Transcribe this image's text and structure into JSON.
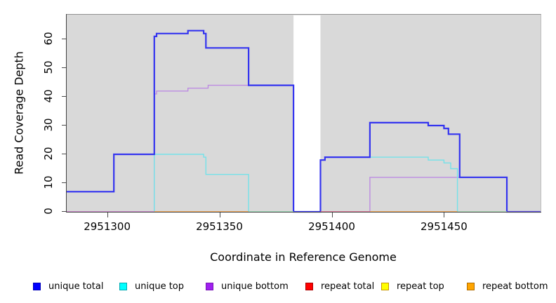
{
  "figure": {
    "xlabel": "Coordinate in Reference Genome",
    "ylabel": "Read Coverage Depth"
  },
  "chart_data": {
    "type": "line",
    "subtype": "step-coverage-plot",
    "title": "",
    "xlabel": "Coordinate in Reference Genome",
    "ylabel": "Read Coverage Depth",
    "xlim": [
      2951282,
      2951493
    ],
    "ylim": [
      0,
      68.5
    ],
    "x_ticks": [
      2951300,
      2951350,
      2951400,
      2951450
    ],
    "y_ticks": [
      0,
      10,
      20,
      30,
      40,
      50,
      60
    ],
    "grid": false,
    "legend_position": "bottom",
    "panel_bg": "#d9d9d9",
    "gap_region": {
      "x_start": 2951383,
      "x_end": 2951395,
      "color": "#ffffff",
      "note": "white band where no reference coverage is drawn"
    },
    "series": [
      {
        "name": "unique total",
        "color": "#3434ef",
        "line_width": 2.2,
        "steps": [
          [
            2951282,
            7
          ],
          [
            2951303,
            20
          ],
          [
            2951321,
            61
          ],
          [
            2951322,
            62
          ],
          [
            2951336,
            63
          ],
          [
            2951343,
            62
          ],
          [
            2951344,
            57
          ],
          [
            2951363,
            44
          ],
          [
            2951383,
            0
          ],
          [
            2951395,
            18
          ],
          [
            2951397,
            19
          ],
          [
            2951417,
            31
          ],
          [
            2951443,
            30
          ],
          [
            2951450,
            29
          ],
          [
            2951452,
            27
          ],
          [
            2951457,
            12
          ],
          [
            2951478,
            0
          ]
        ],
        "x_end": 2951493
      },
      {
        "name": "unique top",
        "color": "#74e2e9",
        "line_width": 1.4,
        "steps": [
          [
            2951321,
            0
          ],
          [
            2951321,
            20
          ],
          [
            2951343,
            19
          ],
          [
            2951344,
            13
          ],
          [
            2951363,
            0
          ],
          [
            2951395,
            18
          ],
          [
            2951397,
            19
          ],
          [
            2951443,
            18
          ],
          [
            2951450,
            17
          ],
          [
            2951453,
            15
          ],
          [
            2951456,
            0
          ]
        ],
        "x_end": 2951456
      },
      {
        "name": "unique bottom",
        "color": "#bd8ce2",
        "line_width": 1.4,
        "steps": [
          [
            2951321,
            0
          ],
          [
            2951321,
            41
          ],
          [
            2951322,
            42
          ],
          [
            2951336,
            43
          ],
          [
            2951345,
            44
          ],
          [
            2951383,
            0
          ],
          [
            2951417,
            0
          ],
          [
            2951417,
            12
          ],
          [
            2951478,
            0
          ]
        ],
        "x_end": 2951493
      },
      {
        "name": "repeat total",
        "color": "#ff0000",
        "line_width": 1.4,
        "constant_value": 0,
        "steps": [],
        "x_end": 2951493
      },
      {
        "name": "repeat top",
        "color": "#ffff00",
        "line_width": 1.4,
        "constant_value": 0,
        "steps": [],
        "x_end": 2951493
      },
      {
        "name": "repeat bottom",
        "color": "#ffa500",
        "line_width": 1.4,
        "constant_value": 0,
        "steps": [],
        "x_end": 2951493
      }
    ],
    "baseline_segments": [
      {
        "x_start": 2951282,
        "x_end": 2951321,
        "color": "#cb76cb"
      },
      {
        "x_start": 2951321,
        "x_end": 2951363,
        "color": "#ff9c30"
      },
      {
        "x_start": 2951363,
        "x_end": 2951383,
        "color": "#9fdcae"
      },
      {
        "x_start": 2951395,
        "x_end": 2951417,
        "color": "#e56a84"
      },
      {
        "x_start": 2951417,
        "x_end": 2951456,
        "color": "#ff9c30"
      },
      {
        "x_start": 2951456,
        "x_end": 2951478,
        "color": "#9fdcae"
      },
      {
        "x_start": 2951478,
        "x_end": 2951493,
        "color": "#6c55e0"
      }
    ],
    "legend": [
      {
        "label": "unique total",
        "fill": "#0000ff",
        "border": "#0000b8"
      },
      {
        "label": "unique top",
        "fill": "#00ffff",
        "border": "#00a8b0"
      },
      {
        "label": "unique bottom",
        "fill": "#a020f0",
        "border": "#7714b4"
      },
      {
        "label": "repeat total",
        "fill": "#ff0000",
        "border": "#a80000"
      },
      {
        "label": "repeat top",
        "fill": "#ffff00",
        "border": "#c89600"
      },
      {
        "label": "repeat bottom",
        "fill": "#ffa500",
        "border": "#b06c00"
      }
    ]
  }
}
